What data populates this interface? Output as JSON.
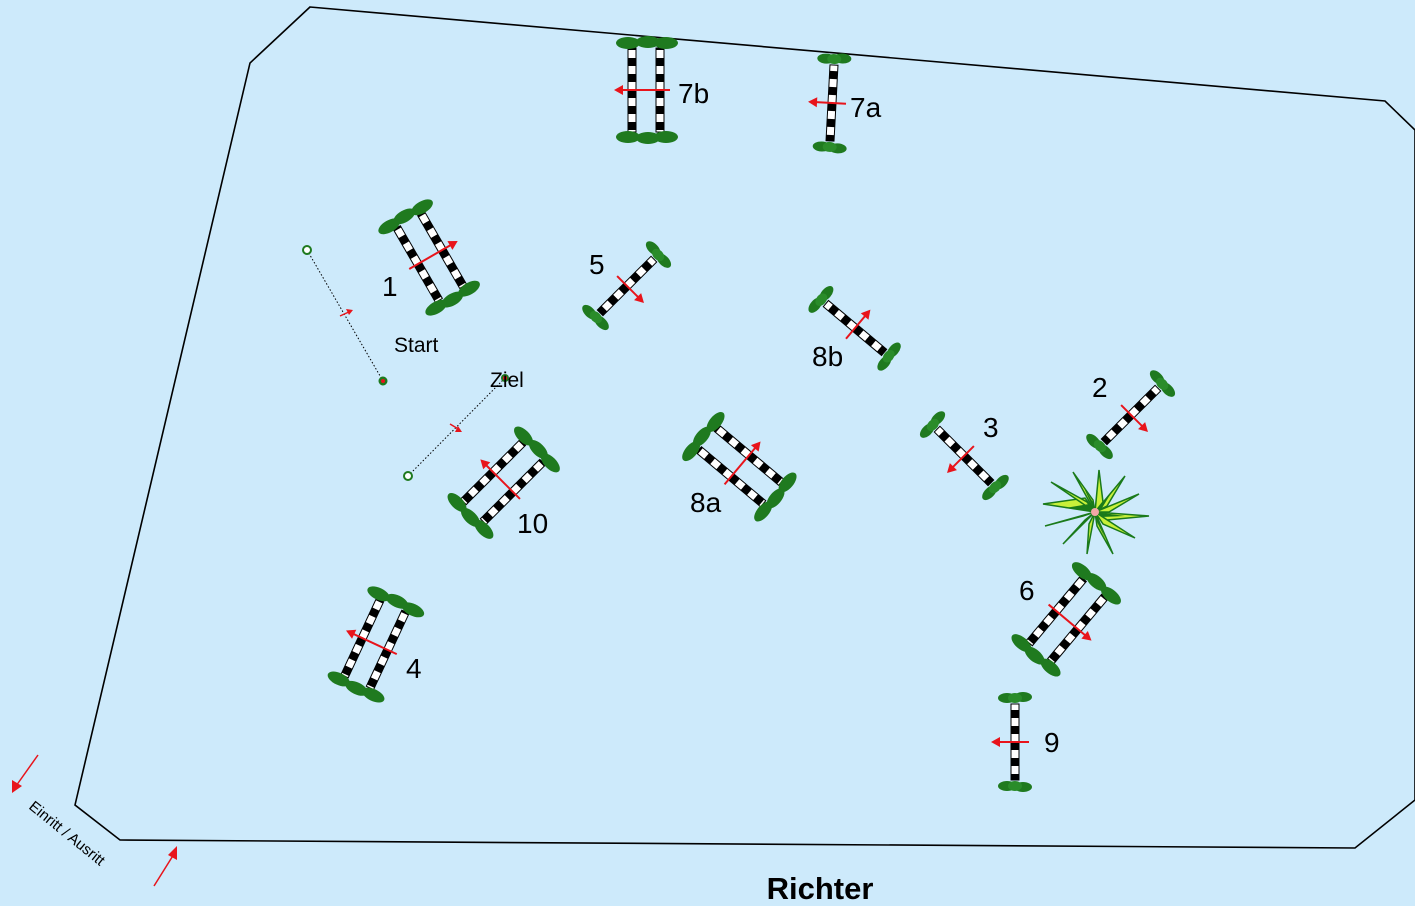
{
  "title": "Richter",
  "entrance_label": "Einritt / Ausritt",
  "start_label": "Start",
  "finish_label": "Ziel",
  "colors": {
    "background": "#cdeafb",
    "arena_line": "#000000",
    "hedge": "#1f7a1f",
    "arrow": "#e8141b",
    "plant_fill": "#c8f03a",
    "plant_dark": "#1a7a1a"
  },
  "obstacles": {
    "o1": "1",
    "o2": "2",
    "o3": "3",
    "o4": "4",
    "o5": "5",
    "o6": "6",
    "o7a": "7a",
    "o7b": "7b",
    "o8a": "8a",
    "o8b": "8b",
    "o9": "9",
    "o10": "10"
  },
  "icons": {
    "plant": "palm-plant-icon",
    "hedge": "hedge-icon",
    "arrow": "direction-arrow-icon"
  }
}
